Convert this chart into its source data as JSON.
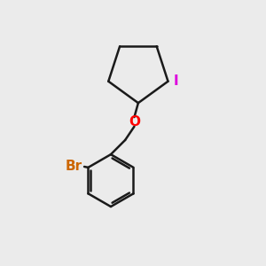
{
  "background_color": "#ebebeb",
  "bond_color": "#1a1a1a",
  "bond_width": 1.8,
  "O_color": "#ff0000",
  "Br_color": "#cc6600",
  "I_color": "#dd00dd",
  "O_label": "O",
  "Br_label": "Br",
  "I_label": "I",
  "label_fontsize": 11,
  "figsize": [
    3.0,
    3.0
  ],
  "dpi": 100
}
